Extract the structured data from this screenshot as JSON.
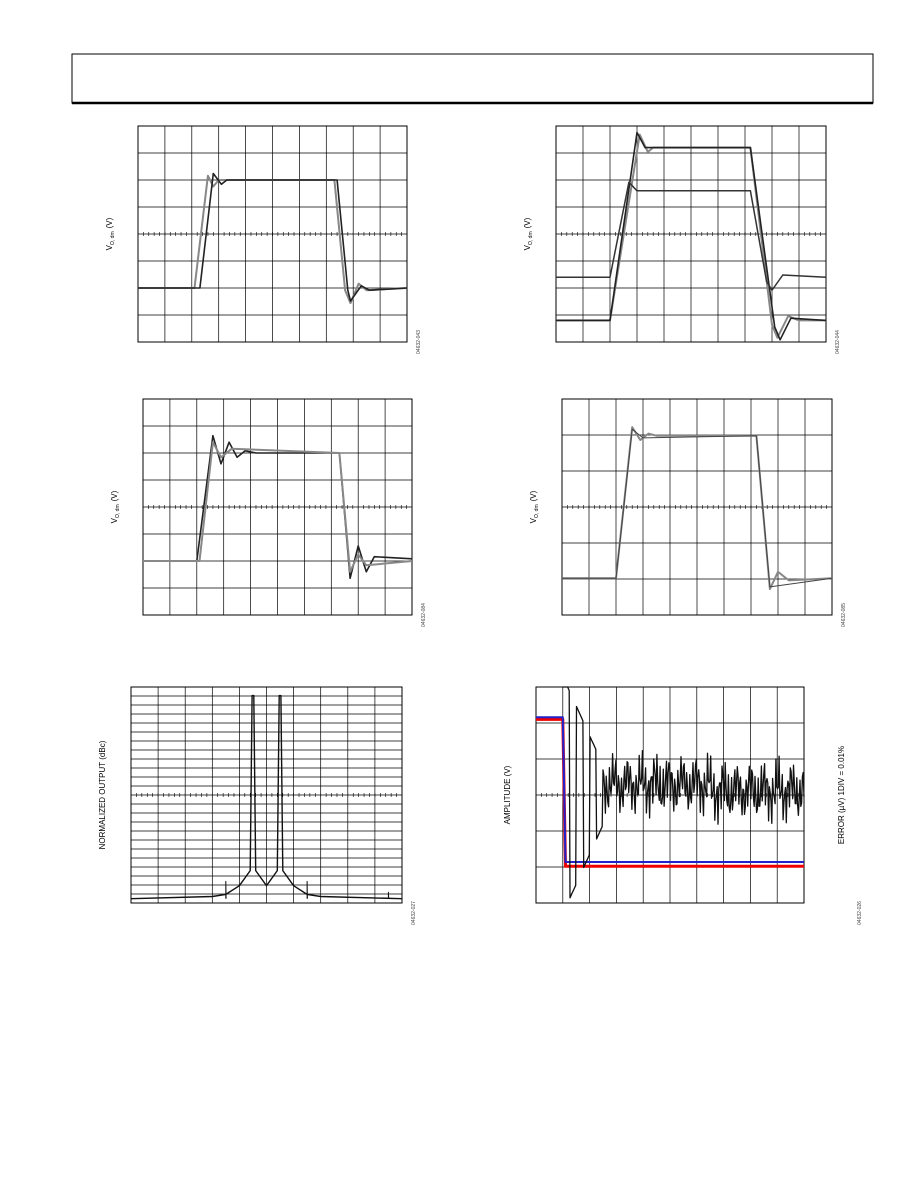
{
  "figures": [
    {
      "ylabel": {
        "base": "V",
        "sub": "O, dm",
        "unit": "(V)"
      },
      "id": "04632-043"
    },
    {
      "ylabel": {
        "base": "V",
        "sub": "O, dm",
        "unit": "(V)"
      },
      "id": "04632-044"
    },
    {
      "ylabel": {
        "base": "V",
        "sub": "O, dm",
        "unit": "(V)"
      },
      "id": "04632-084"
    },
    {
      "ylabel": {
        "base": "V",
        "sub": "O, dm",
        "unit": "(V)"
      },
      "id": "04632-085"
    },
    {
      "ylabel": "NORMALIZED OUTPUT (dBc)",
      "id": "04632-027"
    },
    {
      "ylabel": "AMPLITUDE (V)",
      "y2label": "ERROR (µV) 1DIV = 0.01%",
      "id": "04632-026"
    }
  ]
}
